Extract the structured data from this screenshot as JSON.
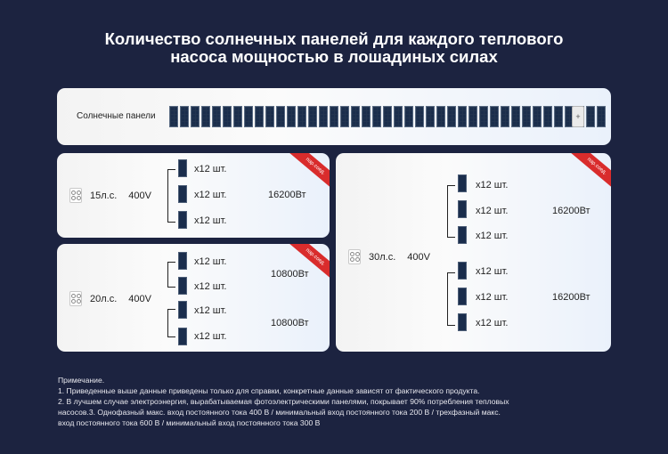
{
  "title_line1": "Количество солнечных панелей для каждого теплового",
  "title_line2": "насоса мощностью в лошадиных силах",
  "panel_label": "Солнечные панели",
  "panel_count": 41,
  "plus_symbol": "+",
  "ribbon_text": "пар.соед.",
  "qty_label": "x12 шт.",
  "cards": {
    "hp15": {
      "hp": "15л.с.",
      "voltage": "400V",
      "watt": "16200Вт"
    },
    "hp20": {
      "hp": "20л.с.",
      "voltage": "400V",
      "watt_a": "10800Вт",
      "watt_b": "10800Вт"
    },
    "hp30": {
      "hp": "30л.с.",
      "voltage": "400V",
      "watt_a": "16200Вт",
      "watt_b": "16200Вт"
    }
  },
  "notes": {
    "heading": "Примечание.",
    "line1": "1. Приведенные выше данные приведены только для справки, конкретные данные зависят от фактического продукта.",
    "line2": "2. В лучшем случае электроэнергия, вырабатываемая фотоэлектрическими панелями, покрывает 90% потребления тепловых",
    "line3": "насосов.3. Однофазный макс. вход постоянного тока 400 В / минимальный вход постоянного тока 200 В / трехфазный макс.",
    "line4": "вход постоянного тока 600 В / минимальный вход постоянного тока 300 В"
  },
  "colors": {
    "background": "#1c2340",
    "panel": "#1a2d4c",
    "ribbon": "#d92c2c"
  }
}
